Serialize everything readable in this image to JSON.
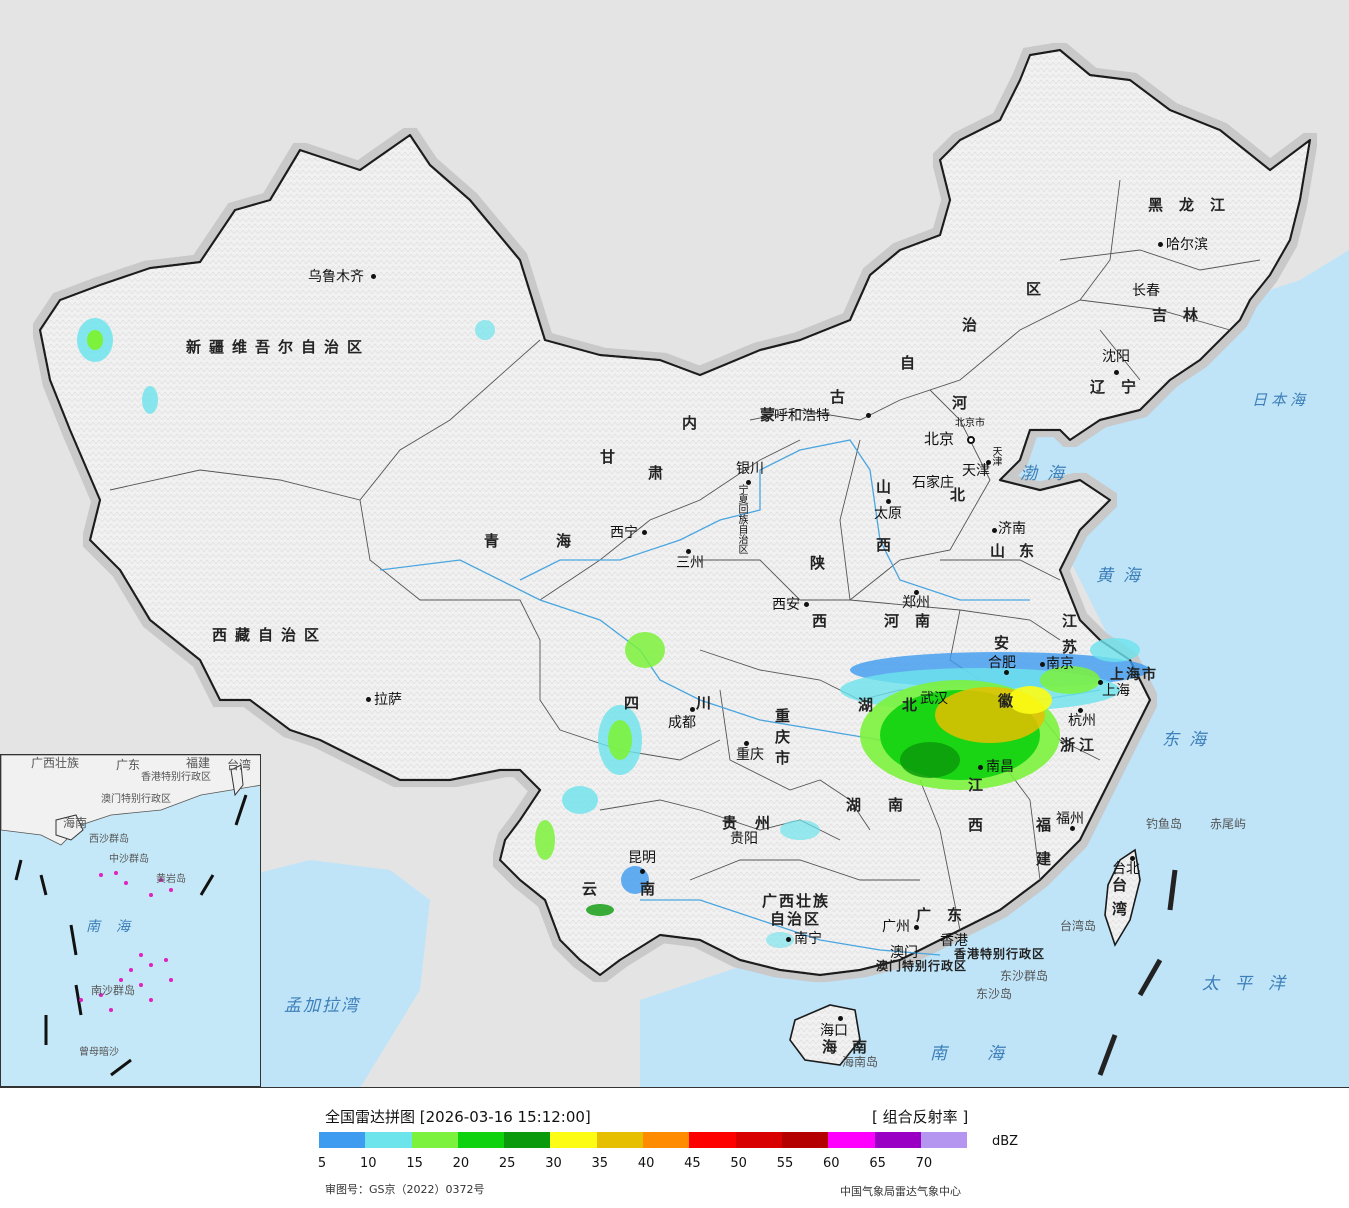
{
  "legend": {
    "title": "全国雷达拼图 [2026-03-16 15:12:00]",
    "product": "[ 组合反射率 ]",
    "unit": "dBZ",
    "colors": [
      "#3d9bf0",
      "#6de4ec",
      "#7cf23c",
      "#0ed20e",
      "#0b9a0b",
      "#fcfc14",
      "#e6c000",
      "#ff8c00",
      "#ff0000",
      "#d80000",
      "#b40000",
      "#ff00ff",
      "#9a00c4",
      "#b496f0"
    ],
    "ticks": [
      "5",
      "10",
      "15",
      "20",
      "25",
      "30",
      "35",
      "40",
      "45",
      "50",
      "55",
      "60",
      "65",
      "70"
    ],
    "review_number": "审图号：GS京（2022）0372号",
    "issuer": "中国气象局雷达气象中心"
  },
  "regions": [
    {
      "id": "xinjiang",
      "label": "新疆维吾尔自治区"
    },
    {
      "id": "xizang",
      "label": "西藏自治区"
    },
    {
      "id": "qinghai-q",
      "label": "青"
    },
    {
      "id": "qinghai-h",
      "label": "海"
    },
    {
      "id": "gansu-g",
      "label": "甘"
    },
    {
      "id": "gansu-s",
      "label": "肃"
    },
    {
      "id": "neimeng-n",
      "label": "内"
    },
    {
      "id": "neimeng-m",
      "label": "蒙"
    },
    {
      "id": "neimeng-g",
      "label": "古"
    },
    {
      "id": "neimeng-z",
      "label": "自"
    },
    {
      "id": "neimeng-zhi",
      "label": "治"
    },
    {
      "id": "neimeng-q",
      "label": "区"
    },
    {
      "id": "heilongjiang",
      "label": "黑龙江"
    },
    {
      "id": "jilin",
      "label": "吉林"
    },
    {
      "id": "liaoning",
      "label": "辽宁"
    },
    {
      "id": "hebei-he",
      "label": "河"
    },
    {
      "id": "hebei-bei",
      "label": "北"
    },
    {
      "id": "shanxi-shan",
      "label": "山"
    },
    {
      "id": "shanxi-xi",
      "label": "西"
    },
    {
      "id": "shandong",
      "label": "山东"
    },
    {
      "id": "henan",
      "label": "河南"
    },
    {
      "id": "shaanxi-shan",
      "label": "陕"
    },
    {
      "id": "shaanxi-xi",
      "label": "西"
    },
    {
      "id": "sichuan-si",
      "label": "四"
    },
    {
      "id": "sichuan-chuan",
      "label": "川"
    },
    {
      "id": "chongqing",
      "label": "重庆市"
    },
    {
      "id": "hubei-hu",
      "label": "湖"
    },
    {
      "id": "hubei-bei",
      "label": "北"
    },
    {
      "id": "hunan-hu",
      "label": "湖"
    },
    {
      "id": "hunan-nan",
      "label": "南"
    },
    {
      "id": "anhui-an",
      "label": "安"
    },
    {
      "id": "anhui-hui",
      "label": "徽"
    },
    {
      "id": "jiangsu-jiang",
      "label": "江"
    },
    {
      "id": "jiangsu-su",
      "label": "苏"
    },
    {
      "id": "zhejiang",
      "label": "浙江"
    },
    {
      "id": "jiangxi-jiang",
      "label": "江"
    },
    {
      "id": "jiangxi-xi",
      "label": "西"
    },
    {
      "id": "fujian-fu",
      "label": "福"
    },
    {
      "id": "fujian-jian",
      "label": "建"
    },
    {
      "id": "guizhou",
      "label": "贵州"
    },
    {
      "id": "yunnan-yun",
      "label": "云"
    },
    {
      "id": "yunnan-nan",
      "label": "南"
    },
    {
      "id": "guangxi-1",
      "label": "广西壮族"
    },
    {
      "id": "guangxi-2",
      "label": "自治区"
    },
    {
      "id": "guangdong",
      "label": "广东"
    },
    {
      "id": "hainan-hai",
      "label": "海"
    },
    {
      "id": "hainan-nan",
      "label": "南"
    },
    {
      "id": "taiwan-tai",
      "label": "台"
    },
    {
      "id": "taiwan-wan",
      "label": "湾"
    },
    {
      "id": "ningxia",
      "label": "宁夏回族自治区"
    },
    {
      "id": "shanghai",
      "label": "上海市"
    },
    {
      "id": "hk",
      "label": "香港特别行政区"
    },
    {
      "id": "macao",
      "label": "澳门特别行政区"
    }
  ],
  "cities": [
    {
      "id": "urumqi",
      "label": "乌鲁木齐"
    },
    {
      "id": "lhasa",
      "label": "拉萨"
    },
    {
      "id": "xining",
      "label": "西宁"
    },
    {
      "id": "lanzhou",
      "label": "三州"
    },
    {
      "id": "yinchuan",
      "label": "银川"
    },
    {
      "id": "hohhot",
      "label": "呼和浩特"
    },
    {
      "id": "beijing",
      "label": "北京"
    },
    {
      "id": "beijing-city",
      "label": "北京市"
    },
    {
      "id": "tianjin",
      "label": "天津"
    },
    {
      "id": "tianjin-city",
      "label": "天津"
    },
    {
      "id": "shijiazhuang",
      "label": "石家庄"
    },
    {
      "id": "taiyuan",
      "label": "太原"
    },
    {
      "id": "jinan",
      "label": "济南"
    },
    {
      "id": "zhengzhou",
      "label": "郑州"
    },
    {
      "id": "xian",
      "label": "西安"
    },
    {
      "id": "chengdu",
      "label": "成都"
    },
    {
      "id": "chongqing",
      "label": "重庆"
    },
    {
      "id": "wuhan",
      "label": "武汉"
    },
    {
      "id": "hefei",
      "label": "合肥"
    },
    {
      "id": "nanjing",
      "label": "南京"
    },
    {
      "id": "shanghai",
      "label": "上海"
    },
    {
      "id": "hangzhou",
      "label": "杭州"
    },
    {
      "id": "nanchang",
      "label": "南昌"
    },
    {
      "id": "fuzhou",
      "label": "福州"
    },
    {
      "id": "taipei",
      "label": "台北"
    },
    {
      "id": "guiyang",
      "label": "贵阳"
    },
    {
      "id": "kunming",
      "label": "昆明"
    },
    {
      "id": "nanning",
      "label": "南宁"
    },
    {
      "id": "guangzhou",
      "label": "广州"
    },
    {
      "id": "hongkong",
      "label": "香港"
    },
    {
      "id": "macau",
      "label": "澳门"
    },
    {
      "id": "haikou",
      "label": "海口"
    },
    {
      "id": "harbin",
      "label": "哈尔滨"
    },
    {
      "id": "changchun",
      "label": "长春"
    },
    {
      "id": "shenyang",
      "label": "沈阳"
    }
  ],
  "seas": [
    {
      "id": "bohai",
      "label": "渤海"
    },
    {
      "id": "huanghai",
      "label": "黄海"
    },
    {
      "id": "donghai",
      "label": "东海"
    },
    {
      "id": "nanhai",
      "label": "南海"
    },
    {
      "id": "taipingyang",
      "label": "太平洋"
    },
    {
      "id": "ribenhai",
      "label": "日本海"
    },
    {
      "id": "mengjialawan",
      "label": "孟加拉湾"
    },
    {
      "id": "inset-nanhai",
      "label": "南海"
    }
  ],
  "islands": [
    {
      "id": "diaoyu",
      "label": "钓鱼岛"
    },
    {
      "id": "chiwei",
      "label": "赤尾屿"
    },
    {
      "id": "taiwan-island",
      "label": "台湾岛"
    },
    {
      "id": "dongsha-qundao",
      "label": "东沙群岛"
    },
    {
      "id": "dongsha-dao",
      "label": "东沙岛"
    },
    {
      "id": "hainan-dao",
      "label": "海南岛"
    }
  ],
  "inset_labels": [
    {
      "id": "in-guangxi",
      "label": "广西壮族"
    },
    {
      "id": "in-guangdong",
      "label": "广东"
    },
    {
      "id": "in-fujian",
      "label": "福建"
    },
    {
      "id": "in-taiwan",
      "label": "台湾"
    },
    {
      "id": "in-hk",
      "label": "香港特别行政区"
    },
    {
      "id": "in-macao",
      "label": "澳门特别行政区"
    },
    {
      "id": "in-hainan",
      "label": "海南"
    },
    {
      "id": "in-xisha",
      "label": "西沙群岛"
    },
    {
      "id": "in-zhongsha",
      "label": "中沙群岛"
    },
    {
      "id": "in-huangyan",
      "label": "黄岩岛"
    },
    {
      "id": "in-nansha",
      "label": "南沙群岛"
    },
    {
      "id": "in-zengmu",
      "label": "曾母暗沙"
    }
  ]
}
